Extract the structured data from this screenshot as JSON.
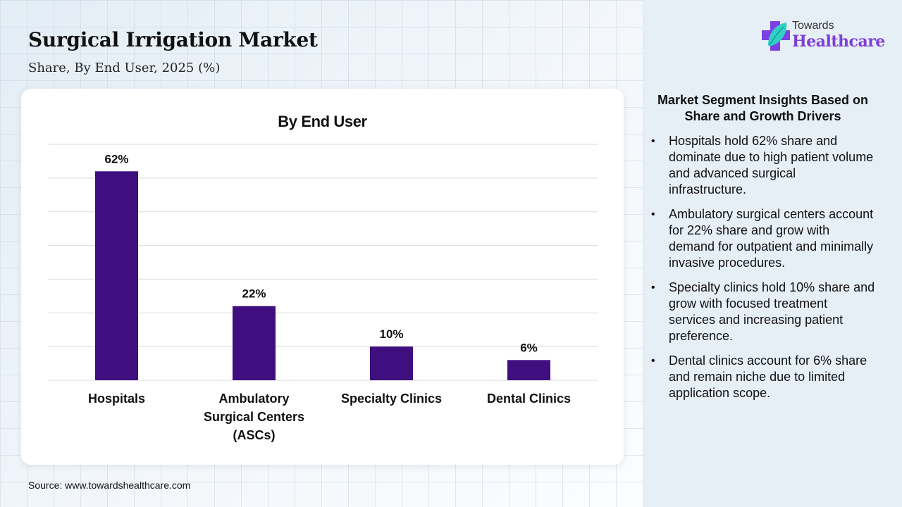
{
  "header": {
    "title": "Surgical Irrigation Market",
    "subtitle": "Share, By End User, 2025 (%)"
  },
  "logo": {
    "icon": "medical-cross-leaf-icon",
    "line1": "Towards",
    "line2": "Healthcare",
    "colors": {
      "cross": "#7b3fe4",
      "leaf": "#2fd1c5",
      "text": "#7e3fd6"
    }
  },
  "chart_data": {
    "type": "bar",
    "title": "By End User",
    "categories": [
      "Hospitals",
      "Ambulatory Surgical Centers (ASCs)",
      "Specialty Clinics",
      "Dental Clinics"
    ],
    "category_lines": [
      [
        "Hospitals"
      ],
      [
        "Ambulatory",
        "Surgical Centers",
        "(ASCs)"
      ],
      [
        "Specialty Clinics"
      ],
      [
        "Dental Clinics"
      ]
    ],
    "values": [
      62,
      22,
      10,
      6
    ],
    "data_labels": [
      "62%",
      "22%",
      "10%",
      "6%"
    ],
    "unit": "%",
    "xlabel": "",
    "ylabel": "",
    "ylim": [
      0,
      70
    ],
    "grid": true,
    "grid_step": 10,
    "y_tick_labels_visible": false,
    "legend": "none",
    "bar_color": "#3f0f7f"
  },
  "insights": {
    "title": "Market Segment Insights Based on Share and Growth Drivers",
    "items": [
      "Hospitals hold 62% share and dominate due to high patient volume and advanced surgical infrastructure.",
      "Ambulatory surgical centers account for 22% share and grow with demand for outpatient and minimally invasive procedures.",
      "Specialty clinics hold 10% share and grow with focused treatment services and increasing patient preference.",
      "Dental clinics account for 6% share and remain niche due to limited application scope."
    ],
    "bullet": "•"
  },
  "footer": {
    "source": "Source: www.towardshealthcare.com"
  }
}
